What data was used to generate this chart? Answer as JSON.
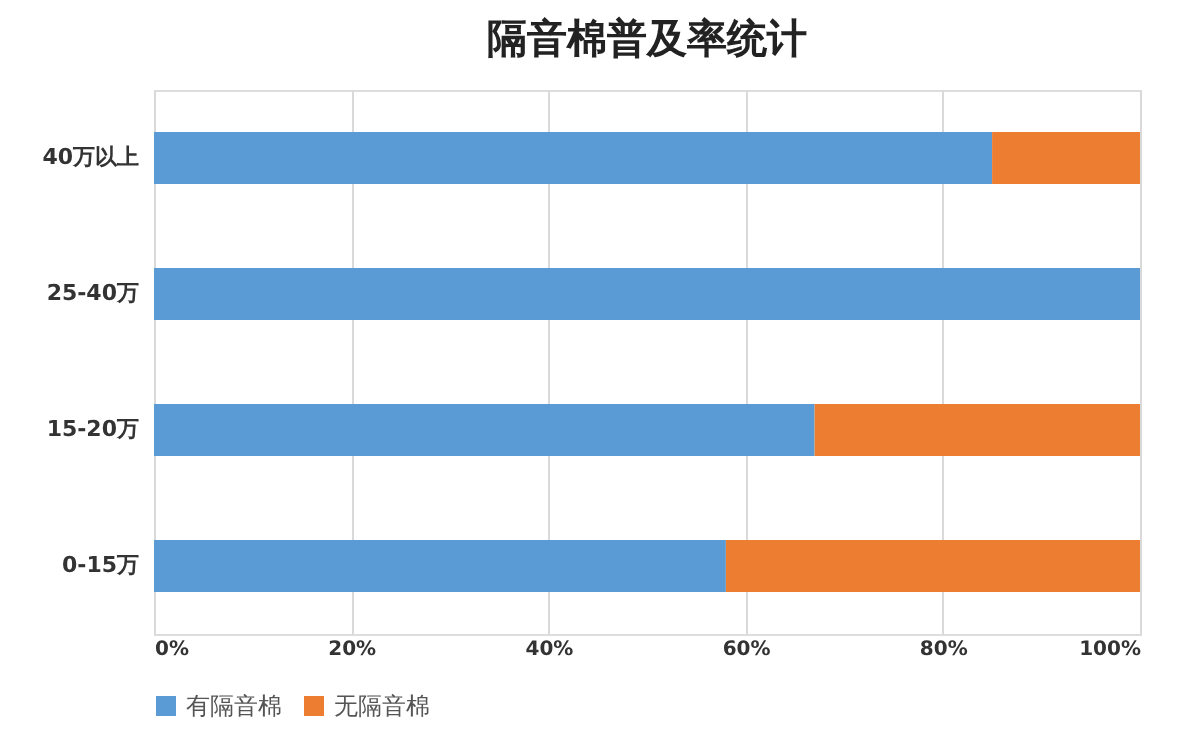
{
  "chart_data": {
    "type": "bar",
    "title": "隔音棉普及率统计",
    "orientation": "horizontal",
    "stacked": true,
    "categories": [
      "40万以上",
      "25-40万",
      "15-20万",
      "0-15万"
    ],
    "series": [
      {
        "name": "有隔音棉",
        "color": "#5b9bd5",
        "values": [
          85,
          100,
          67,
          58
        ]
      },
      {
        "name": "无隔音棉",
        "color": "#ed7d31",
        "values": [
          15,
          0,
          33,
          42
        ]
      }
    ],
    "xlim": [
      0,
      100
    ],
    "xticks": [
      {
        "value": 0,
        "label": "0%"
      },
      {
        "value": 20,
        "label": "20%"
      },
      {
        "value": 40,
        "label": "40%"
      },
      {
        "value": 60,
        "label": "60%"
      },
      {
        "value": 80,
        "label": "80%"
      },
      {
        "value": 100,
        "label": "100%"
      }
    ],
    "grid": "x",
    "legend": "bottom"
  }
}
